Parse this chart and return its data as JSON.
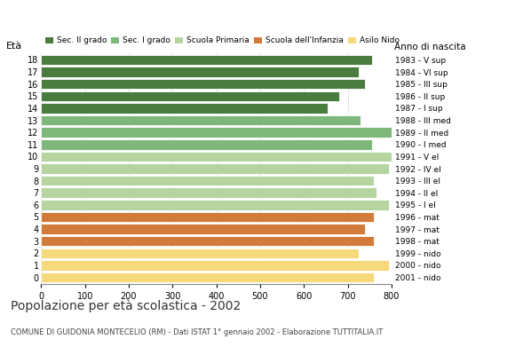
{
  "ages": [
    18,
    17,
    16,
    15,
    14,
    13,
    12,
    11,
    10,
    9,
    8,
    7,
    6,
    5,
    4,
    3,
    2,
    1,
    0
  ],
  "values": [
    755,
    725,
    740,
    680,
    655,
    730,
    800,
    755,
    800,
    795,
    760,
    765,
    795,
    760,
    740,
    760,
    725,
    795,
    760
  ],
  "right_labels": [
    "1983 - V sup",
    "1984 - VI sup",
    "1985 - III sup",
    "1986 - II sup",
    "1987 - I sup",
    "1988 - III med",
    "1989 - II med",
    "1990 - I med",
    "1991 - V el",
    "1992 - IV el",
    "1993 - III el",
    "1994 - II el",
    "1995 - I el",
    "1996 - mat",
    "1997 - mat",
    "1998 - mat",
    "1999 - nido",
    "2000 - nido",
    "2001 - nido"
  ],
  "bar_colors": [
    "#4a7c3f",
    "#4a7c3f",
    "#4a7c3f",
    "#4a7c3f",
    "#4a7c3f",
    "#7db87a",
    "#7db87a",
    "#7db87a",
    "#b5d4a0",
    "#b5d4a0",
    "#b5d4a0",
    "#b5d4a0",
    "#b5d4a0",
    "#d17a3a",
    "#d17a3a",
    "#d17a3a",
    "#f5d97a",
    "#f5d97a",
    "#f5d97a"
  ],
  "legend_labels": [
    "Sec. II grado",
    "Sec. I grado",
    "Scuola Primaria",
    "Scuola dell'Infanzia",
    "Asilo Nido"
  ],
  "legend_colors": [
    "#4a7c3f",
    "#7db87a",
    "#b5d4a0",
    "#d17a3a",
    "#f5d97a"
  ],
  "title": "Popolazione per età scolastica - 2002",
  "subtitle": "COMUNE DI GUIDONIA MONTECELIO (RM) - Dati ISTAT 1° gennaio 2002 - Elaborazione TUTTITALIA.IT",
  "ylabel_left": "Età",
  "ylabel_right": "Anno di nascita",
  "xlim": [
    0,
    800
  ],
  "xticks": [
    0,
    100,
    200,
    300,
    400,
    500,
    600,
    700,
    800
  ],
  "background_color": "#ffffff",
  "bar_height": 0.85,
  "grid_color": "#bbbbbb"
}
